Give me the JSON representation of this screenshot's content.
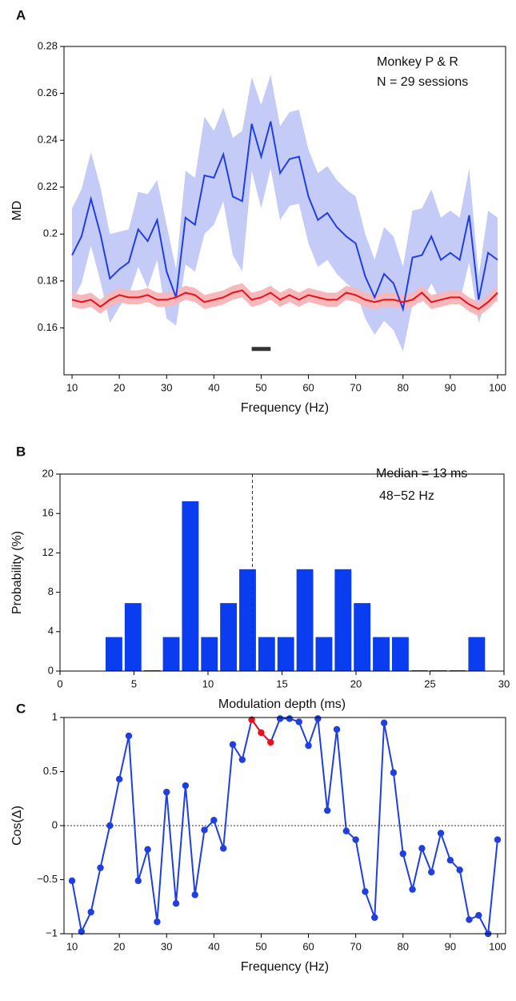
{
  "chart_data": [
    {
      "type": "line",
      "panel": "A",
      "xlabel": "Frequency (Hz)",
      "ylabel": "MD",
      "annotations": [
        "Monkey P & R",
        "N = 29 sessions"
      ],
      "x": [
        10,
        12,
        14,
        16,
        18,
        20,
        22,
        24,
        26,
        28,
        30,
        32,
        34,
        36,
        38,
        40,
        42,
        44,
        46,
        48,
        50,
        52,
        54,
        56,
        58,
        60,
        62,
        64,
        66,
        68,
        70,
        72,
        74,
        76,
        78,
        80,
        82,
        84,
        86,
        88,
        90,
        92,
        94,
        96,
        98,
        100
      ],
      "series": [
        {
          "color": "#1f3fe0",
          "band_color": "#c5cbf7",
          "values": [
            0.191,
            0.199,
            0.215,
            0.2,
            0.181,
            0.185,
            0.188,
            0.202,
            0.197,
            0.206,
            0.184,
            0.173,
            0.207,
            0.204,
            0.225,
            0.224,
            0.234,
            0.216,
            0.214,
            0.247,
            0.233,
            0.248,
            0.226,
            0.232,
            0.233,
            0.216,
            0.206,
            0.209,
            0.203,
            0.199,
            0.196,
            0.182,
            0.173,
            0.183,
            0.179,
            0.168,
            0.19,
            0.191,
            0.199,
            0.189,
            0.192,
            0.189,
            0.208,
            0.172,
            0.192,
            0.189
          ],
          "errors": [
            0.02,
            0.02,
            0.02,
            0.02,
            0.019,
            0.016,
            0.014,
            0.016,
            0.02,
            0.017,
            0.02,
            0.012,
            0.02,
            0.02,
            0.025,
            0.02,
            0.02,
            0.025,
            0.03,
            0.02,
            0.022,
            0.02,
            0.02,
            0.02,
            0.02,
            0.02,
            0.02,
            0.02,
            0.02,
            0.02,
            0.02,
            0.018,
            0.016,
            0.02,
            0.02,
            0.018,
            0.02,
            0.02,
            0.02,
            0.018,
            0.018,
            0.018,
            0.02,
            0.01,
            0.018,
            0.018
          ]
        },
        {
          "color": "#e8101a",
          "band_color": "#f6b8bb",
          "values": [
            0.172,
            0.171,
            0.172,
            0.169,
            0.172,
            0.174,
            0.173,
            0.173,
            0.174,
            0.172,
            0.172,
            0.173,
            0.175,
            0.174,
            0.171,
            0.172,
            0.173,
            0.175,
            0.176,
            0.172,
            0.173,
            0.175,
            0.172,
            0.174,
            0.172,
            0.174,
            0.173,
            0.172,
            0.172,
            0.175,
            0.174,
            0.172,
            0.171,
            0.172,
            0.172,
            0.171,
            0.172,
            0.175,
            0.171,
            0.172,
            0.173,
            0.173,
            0.17,
            0.168,
            0.171,
            0.175
          ],
          "errors": [
            0.003,
            0.003,
            0.003,
            0.003,
            0.003,
            0.003,
            0.003,
            0.003,
            0.003,
            0.003,
            0.003,
            0.003,
            0.003,
            0.003,
            0.003,
            0.003,
            0.003,
            0.003,
            0.003,
            0.003,
            0.003,
            0.003,
            0.003,
            0.003,
            0.003,
            0.003,
            0.003,
            0.003,
            0.003,
            0.003,
            0.003,
            0.003,
            0.003,
            0.003,
            0.003,
            0.003,
            0.003,
            0.003,
            0.003,
            0.003,
            0.003,
            0.003,
            0.003,
            0.003,
            0.003,
            0.003
          ]
        }
      ],
      "marker_bar": {
        "x": [
          48,
          52
        ],
        "y": 0.151,
        "color": "#333333"
      },
      "xlim": [
        8.3,
        101.7
      ],
      "ylim": [
        0.14,
        0.28
      ],
      "xticks": [
        10,
        20,
        30,
        40,
        50,
        60,
        70,
        80,
        90,
        100
      ],
      "yticks": [
        0.16,
        0.18,
        0.2,
        0.22,
        0.24,
        0.26,
        0.28
      ]
    },
    {
      "type": "histogram",
      "panel": "B",
      "xlabel": "Modulation depth (ms)",
      "ylabel": "Probability (%)",
      "annotations": [
        "Median = 13 ms",
        "48−52 Hz"
      ],
      "bins": [
        3.0,
        4.29,
        5.58,
        6.87,
        8.16,
        9.45,
        10.74,
        12.03,
        13.32,
        14.61,
        15.9,
        17.19,
        18.48,
        19.77,
        21.06,
        22.35,
        23.64,
        24.93,
        26.22,
        27.51,
        28.8
      ],
      "values": [
        3.45,
        6.9,
        0,
        3.45,
        17.24,
        3.45,
        6.9,
        10.34,
        3.45,
        3.45,
        10.34,
        3.45,
        10.34,
        6.9,
        3.45,
        3.45,
        0,
        0,
        0,
        3.45
      ],
      "color": "#0a3cf0",
      "vline": 13,
      "xlim": [
        0,
        30
      ],
      "ylim": [
        0,
        20
      ],
      "xticks": [
        0,
        5,
        10,
        15,
        20,
        25,
        30
      ],
      "yticks": [
        0,
        4,
        8,
        12,
        16,
        20
      ]
    },
    {
      "type": "line",
      "panel": "C",
      "xlabel": "Frequency (Hz)",
      "ylabel": "Cos(Δ)",
      "x": [
        10,
        12,
        14,
        16,
        18,
        20,
        22,
        24,
        26,
        28,
        30,
        32,
        34,
        36,
        38,
        40,
        42,
        44,
        46,
        48,
        50,
        52,
        54,
        56,
        58,
        60,
        62,
        64,
        66,
        68,
        70,
        72,
        74,
        76,
        78,
        80,
        82,
        84,
        86,
        88,
        90,
        92,
        94,
        96,
        98,
        100
      ],
      "series": [
        {
          "color": "#1f3fe0",
          "markers": true,
          "values": [
            -0.51,
            -0.98,
            -0.8,
            -0.39,
            0.0,
            0.43,
            0.83,
            -0.51,
            -0.22,
            -0.89,
            0.31,
            -0.72,
            0.37,
            -0.64,
            -0.04,
            0.05,
            -0.21,
            0.75,
            0.61,
            0.98,
            0.86,
            0.77,
            0.99,
            0.99,
            0.96,
            0.74,
            0.99,
            0.14,
            0.89,
            -0.05,
            -0.13,
            -0.61,
            -0.85,
            0.95,
            0.49,
            -0.26,
            -0.59,
            -0.21,
            -0.43,
            -0.07,
            -0.32,
            -0.41,
            -0.87,
            -0.83,
            -1.0,
            -0.13
          ]
        }
      ],
      "highlight": {
        "x": [
          48,
          52
        ],
        "color": "#e8101a"
      },
      "hline": 0,
      "xlim": [
        8.3,
        101.7
      ],
      "ylim": [
        -1,
        1
      ],
      "xticks": [
        10,
        20,
        30,
        40,
        50,
        60,
        70,
        80,
        90,
        100
      ],
      "yticks": [
        {
          "value": -1,
          "label": "−1"
        },
        {
          "value": -0.5,
          "label": "−0.5"
        },
        0,
        0.5,
        1
      ]
    }
  ]
}
